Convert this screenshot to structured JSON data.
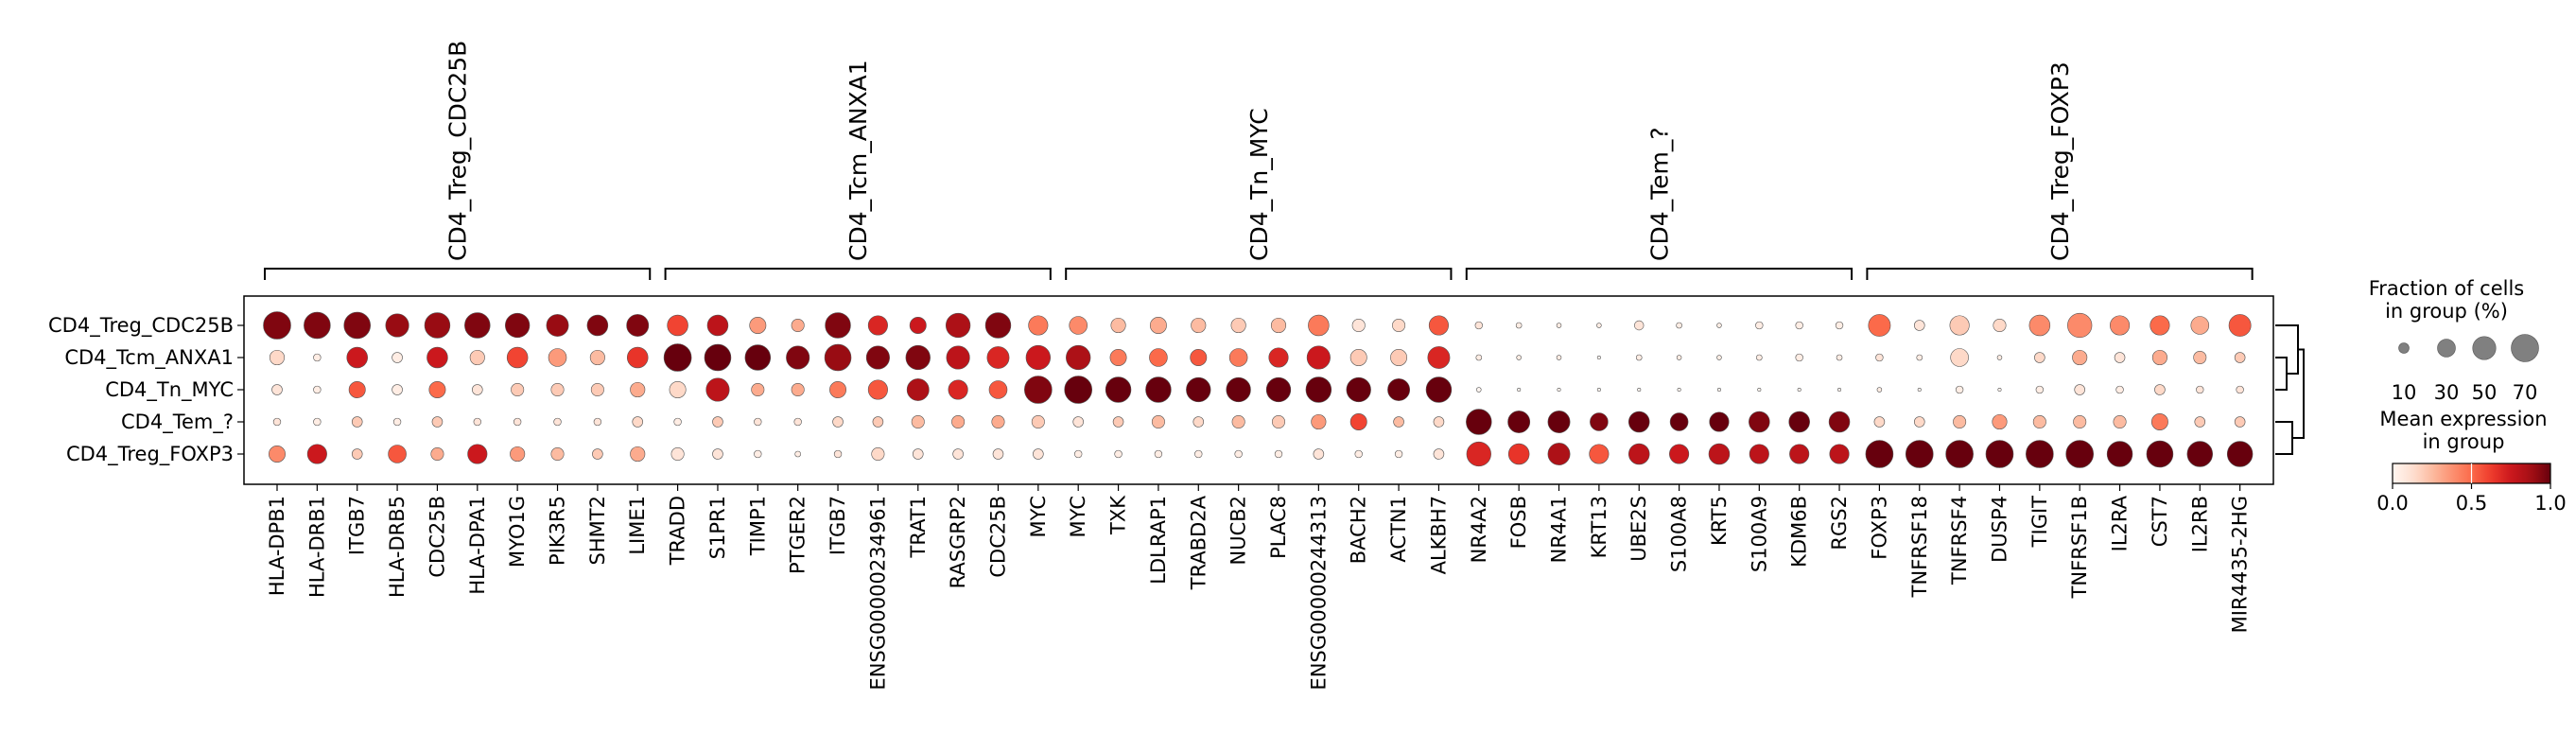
{
  "chart_data": {
    "type": "dotplot",
    "groups": [
      "CD4_Treg_CDC25B",
      "CD4_Tcm_ANXA1",
      "CD4_Tn_MYC",
      "CD4_Tem_?",
      "CD4_Treg_FOXP3"
    ],
    "gene_groups": [
      {
        "label": "CD4_Treg_CDC25B",
        "genes": [
          "HLA-DPB1",
          "HLA-DRB1",
          "ITGB7",
          "HLA-DRB5",
          "CDC25B",
          "HLA-DPA1",
          "MYO1G",
          "PIK3R5",
          "SHMT2",
          "LIME1"
        ]
      },
      {
        "label": "CD4_Tcm_ANXA1",
        "genes": [
          "TRADD",
          "S1PR1",
          "TIMP1",
          "PTGER2",
          "ITGB7",
          "ENSG00000234961",
          "TRAT1",
          "RASGRP2",
          "CDC25B",
          "MYC"
        ]
      },
      {
        "label": "CD4_Tn_MYC",
        "genes": [
          "MYC",
          "TXK",
          "LDLRAP1",
          "TRABD2A",
          "NUCB2",
          "PLAC8",
          "ENSG00000244313",
          "BACH2",
          "ACTN1",
          "ALKBH7"
        ]
      },
      {
        "label": "CD4_Tem_?",
        "genes": [
          "NR4A2",
          "FOSB",
          "NR4A1",
          "KRT13",
          "UBE2S",
          "S100A8",
          "KRT5",
          "S100A9",
          "KDM6B",
          "RGS2"
        ]
      },
      {
        "label": "CD4_Treg_FOXP3",
        "genes": [
          "FOXP3",
          "TNFRSF18",
          "TNFRSF4",
          "DUSP4",
          "TIGIT",
          "TNFRSF1B",
          "IL2RA",
          "CST7",
          "IL2RB",
          "MIR4435-2HG"
        ]
      }
    ],
    "fraction_pct": [
      [
        70,
        65,
        65,
        50,
        60,
        60,
        55,
        45,
        40,
        45,
        40,
        40,
        25,
        15,
        60,
        35,
        25,
        55,
        60,
        35,
        30,
        20,
        25,
        20,
        20,
        20,
        40,
        15,
        15,
        35,
        5,
        3,
        2,
        2,
        8,
        3,
        2,
        5,
        5,
        5,
        45,
        10,
        35,
        15,
        40,
        55,
        35,
        35,
        30,
        45
      ],
      [
        20,
        5,
        40,
        10,
        40,
        20,
        40,
        30,
        20,
        40,
        70,
        65,
        60,
        50,
        65,
        50,
        55,
        50,
        45,
        55,
        55,
        25,
        30,
        25,
        30,
        35,
        50,
        25,
        25,
        45,
        3,
        2,
        2,
        1,
        3,
        2,
        2,
        3,
        5,
        3,
        5,
        3,
        30,
        2,
        10,
        20,
        10,
        20,
        15,
        10
      ],
      [
        10,
        5,
        25,
        10,
        25,
        10,
        15,
        15,
        15,
        20,
        25,
        50,
        15,
        15,
        25,
        35,
        45,
        35,
        30,
        70,
        70,
        60,
        60,
        55,
        55,
        55,
        60,
        55,
        45,
        60,
        2,
        1,
        1,
        1,
        1,
        1,
        1,
        1,
        1,
        1,
        2,
        1,
        5,
        1,
        5,
        10,
        5,
        10,
        5,
        5
      ],
      [
        5,
        5,
        10,
        5,
        10,
        5,
        5,
        5,
        5,
        10,
        5,
        10,
        5,
        5,
        10,
        10,
        15,
        15,
        15,
        15,
        10,
        10,
        15,
        10,
        15,
        15,
        20,
        25,
        10,
        10,
        60,
        45,
        45,
        30,
        40,
        30,
        35,
        40,
        40,
        40,
        10,
        10,
        15,
        20,
        15,
        15,
        15,
        25,
        10,
        10
      ],
      [
        25,
        35,
        10,
        30,
        15,
        35,
        20,
        15,
        10,
        20,
        15,
        10,
        5,
        3,
        5,
        15,
        10,
        10,
        10,
        10,
        5,
        5,
        5,
        5,
        5,
        5,
        10,
        5,
        5,
        10,
        55,
        40,
        45,
        35,
        40,
        35,
        40,
        35,
        35,
        35,
        70,
        70,
        70,
        70,
        70,
        70,
        60,
        65,
        60,
        60
      ]
    ],
    "mean_expression": [
      [
        0.95,
        0.95,
        0.95,
        0.9,
        0.9,
        0.95,
        0.95,
        0.9,
        0.95,
        0.95,
        0.6,
        0.8,
        0.35,
        0.3,
        0.95,
        0.7,
        0.75,
        0.85,
        0.95,
        0.45,
        0.4,
        0.25,
        0.3,
        0.25,
        0.2,
        0.25,
        0.45,
        0.1,
        0.15,
        0.55,
        0.1,
        0.05,
        0.05,
        0.05,
        0.1,
        0.05,
        0.05,
        0.05,
        0.05,
        0.05,
        0.5,
        0.1,
        0.2,
        0.15,
        0.4,
        0.4,
        0.4,
        0.5,
        0.3,
        0.55
      ],
      [
        0.15,
        0.05,
        0.75,
        0.05,
        0.75,
        0.2,
        0.6,
        0.35,
        0.25,
        0.65,
        1.0,
        1.0,
        1.0,
        0.95,
        0.9,
        0.95,
        0.95,
        0.8,
        0.7,
        0.75,
        0.85,
        0.45,
        0.5,
        0.55,
        0.45,
        0.7,
        0.75,
        0.2,
        0.2,
        0.7,
        0.05,
        0.05,
        0.05,
        0.0,
        0.05,
        0.05,
        0.05,
        0.05,
        0.05,
        0.05,
        0.1,
        0.05,
        0.15,
        0.05,
        0.15,
        0.3,
        0.1,
        0.3,
        0.25,
        0.2
      ],
      [
        0.1,
        0.05,
        0.55,
        0.05,
        0.5,
        0.1,
        0.2,
        0.2,
        0.2,
        0.3,
        0.15,
        0.8,
        0.3,
        0.3,
        0.45,
        0.55,
        0.85,
        0.7,
        0.55,
        0.95,
        1.0,
        1.0,
        1.0,
        1.0,
        1.0,
        1.0,
        1.0,
        1.0,
        1.0,
        1.0,
        0.0,
        0.0,
        0.0,
        0.0,
        0.0,
        0.0,
        0.0,
        0.0,
        0.0,
        0.0,
        0.05,
        0.0,
        0.05,
        0.0,
        0.05,
        0.1,
        0.05,
        0.15,
        0.1,
        0.1
      ],
      [
        0.1,
        0.05,
        0.2,
        0.05,
        0.2,
        0.1,
        0.1,
        0.1,
        0.1,
        0.15,
        0.05,
        0.2,
        0.1,
        0.1,
        0.15,
        0.2,
        0.25,
        0.3,
        0.3,
        0.2,
        0.1,
        0.2,
        0.25,
        0.15,
        0.25,
        0.2,
        0.35,
        0.6,
        0.25,
        0.15,
        1.0,
        1.0,
        1.0,
        0.95,
        1.0,
        1.0,
        1.0,
        0.95,
        1.0,
        0.95,
        0.15,
        0.15,
        0.25,
        0.35,
        0.25,
        0.25,
        0.25,
        0.45,
        0.2,
        0.2
      ],
      [
        0.4,
        0.75,
        0.2,
        0.55,
        0.3,
        0.75,
        0.35,
        0.25,
        0.2,
        0.3,
        0.1,
        0.1,
        0.05,
        0.05,
        0.1,
        0.15,
        0.1,
        0.1,
        0.1,
        0.1,
        0.05,
        0.05,
        0.05,
        0.05,
        0.05,
        0.05,
        0.1,
        0.05,
        0.05,
        0.1,
        0.7,
        0.65,
        0.85,
        0.55,
        0.8,
        0.75,
        0.8,
        0.8,
        0.8,
        0.8,
        1.0,
        1.0,
        1.0,
        1.0,
        1.0,
        1.0,
        1.0,
        1.0,
        1.0,
        1.0
      ]
    ],
    "dendrogram_order": [
      "CD4_Treg_CDC25B",
      "CD4_Tcm_ANXA1",
      "CD4_Tn_MYC",
      "CD4_Tem_?",
      "CD4_Treg_FOXP3"
    ],
    "size_legend": {
      "title_line1": "Fraction of cells",
      "title_line2": "in group (%)",
      "values": [
        10,
        30,
        50,
        70
      ],
      "labels": [
        "10",
        "30",
        "50",
        "70"
      ]
    },
    "color_legend": {
      "title_line1": "Mean expression",
      "title_line2": "in group",
      "ticks": [
        0.0,
        0.5,
        1.0
      ],
      "tick_labels": [
        "0.0",
        "0.5",
        "1.0"
      ],
      "colormap": "Reds"
    }
  }
}
